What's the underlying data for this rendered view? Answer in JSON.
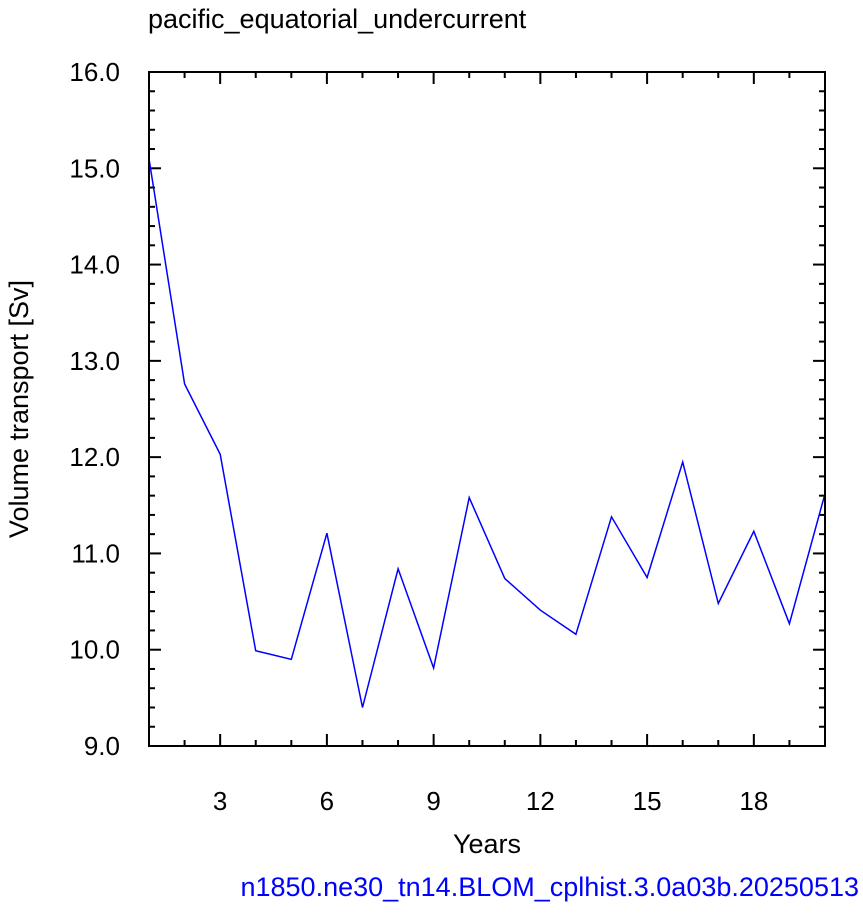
{
  "chart_data": {
    "type": "line",
    "title": "pacific_equatorial_undercurrent",
    "xlabel": "Years",
    "ylabel": "Volume transport [Sv]",
    "xlim": [
      1,
      20
    ],
    "ylim": [
      9.0,
      16.0
    ],
    "xticks": [
      3,
      6,
      9,
      12,
      15,
      18
    ],
    "yticks": [
      "9.0",
      "10.0",
      "11.0",
      "12.0",
      "13.0",
      "14.0",
      "15.0",
      "16.0"
    ],
    "grid": false,
    "series": [
      {
        "color": "#0000ff",
        "x": [
          1,
          2,
          3,
          4,
          5,
          6,
          7,
          8,
          9,
          10,
          11,
          12,
          13,
          14,
          15,
          16,
          17,
          18,
          19,
          20
        ],
        "values": [
          15.1,
          12.76,
          12.03,
          9.99,
          9.9,
          11.21,
          9.4,
          10.84,
          9.81,
          11.58,
          10.74,
          10.41,
          10.16,
          11.38,
          10.75,
          11.95,
          10.48,
          11.23,
          10.27,
          11.62
        ]
      }
    ]
  },
  "footer_text": "n1850.ne30_tn14.BLOM_cplhist.3.0a03b.20250513"
}
